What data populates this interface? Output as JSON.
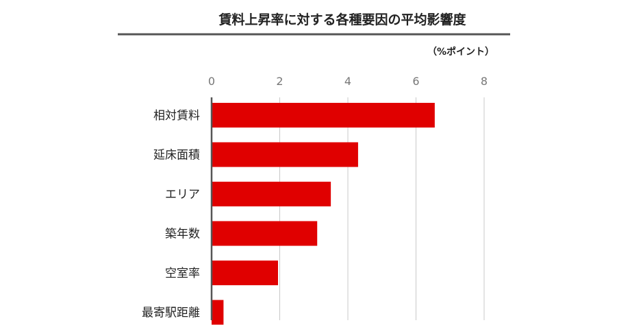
{
  "chart_data": {
    "type": "bar",
    "orientation": "horizontal",
    "title": "賃料上昇率に対する各種要因の平均影響度",
    "unit_label": "（%ポイント）",
    "categories": [
      "相対賃料",
      "延床面積",
      "エリア",
      "築年数",
      "空室率",
      "最寄駅距離"
    ],
    "values": [
      6.55,
      4.3,
      3.5,
      3.1,
      1.95,
      0.35
    ],
    "xlim": [
      0,
      8
    ],
    "xticks": [
      "0",
      "2",
      "4",
      "6",
      "8"
    ],
    "grid": true,
    "legend": "none",
    "colors": {
      "bar": "#e00000",
      "grid": "#c8c8c8",
      "axis": "#555555",
      "title_rule": "#555555"
    }
  }
}
